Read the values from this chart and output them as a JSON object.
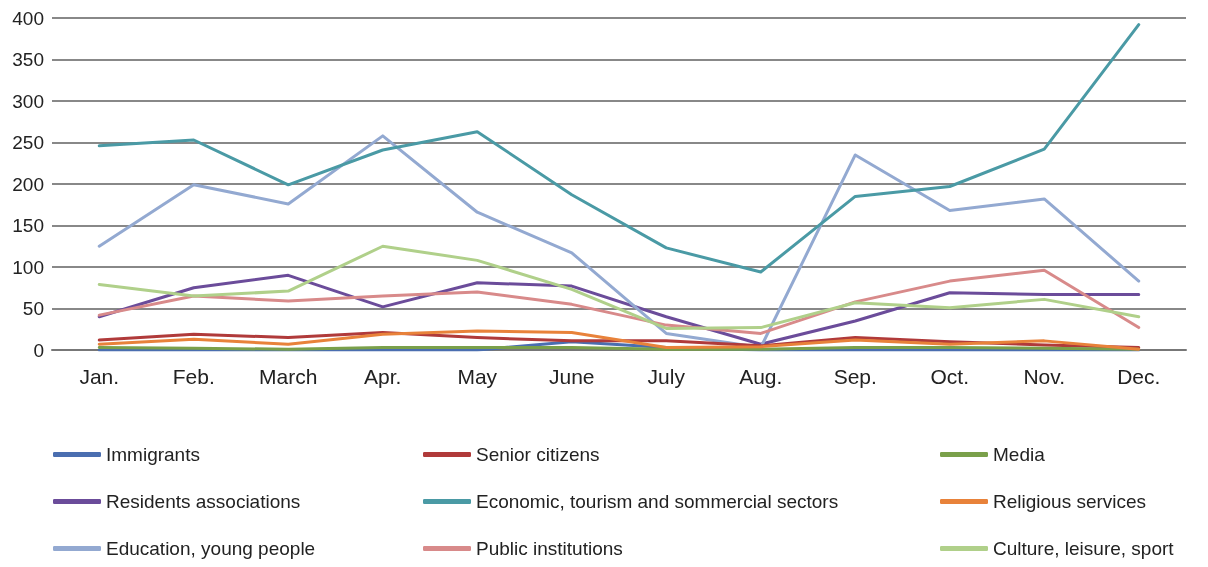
{
  "chart_data": {
    "type": "line",
    "categories": [
      "Jan.",
      "Feb.",
      "March",
      "Apr.",
      "May",
      "June",
      "July",
      "Aug.",
      "Sep.",
      "Oct.",
      "Nov.",
      "Dec."
    ],
    "ylim": [
      0,
      400
    ],
    "yticks": [
      0,
      50,
      100,
      150,
      200,
      250,
      300,
      350,
      400
    ],
    "grid": "y",
    "legend": "bottom",
    "marker": "none",
    "line_style": "solid",
    "series": [
      {
        "name": "Immigrants",
        "color": "#4a6eb0",
        "values": [
          0,
          0,
          0,
          0,
          0,
          10,
          3,
          0,
          0,
          0,
          0,
          0
        ]
      },
      {
        "name": "Residents associations",
        "color": "#6b4c9a",
        "values": [
          40,
          75,
          90,
          52,
          81,
          77,
          40,
          7,
          35,
          69,
          67,
          67
        ]
      },
      {
        "name": "Education, young people",
        "color": "#93a9d1",
        "values": [
          125,
          199,
          176,
          258,
          166,
          117,
          20,
          3,
          235,
          168,
          182,
          83
        ]
      },
      {
        "name": "Senior citizens",
        "color": "#b03a3a",
        "values": [
          12,
          19,
          15,
          21,
          15,
          11,
          11,
          5,
          15,
          10,
          6,
          3
        ]
      },
      {
        "name": "Economic, tourism and sommercial sectors",
        "color": "#4a9aa5",
        "values": [
          246,
          253,
          199,
          241,
          263,
          187,
          123,
          94,
          185,
          197,
          242,
          392
        ]
      },
      {
        "name": "Public institutions",
        "color": "#d88a8a",
        "values": [
          42,
          65,
          59,
          65,
          70,
          55,
          30,
          20,
          58,
          83,
          96,
          27
        ]
      },
      {
        "name": "Media",
        "color": "#7aa04a",
        "values": [
          3,
          2,
          1,
          3,
          3,
          3,
          1,
          1,
          3,
          3,
          2,
          1
        ]
      },
      {
        "name": "Religious services",
        "color": "#e8823a",
        "values": [
          7,
          13,
          7,
          19,
          23,
          21,
          3,
          4,
          12,
          7,
          11,
          1
        ]
      },
      {
        "name": "Culture, leisure, sport",
        "color": "#b0d08a",
        "values": [
          79,
          65,
          71,
          125,
          108,
          73,
          26,
          27,
          57,
          51,
          61,
          40
        ]
      }
    ]
  }
}
